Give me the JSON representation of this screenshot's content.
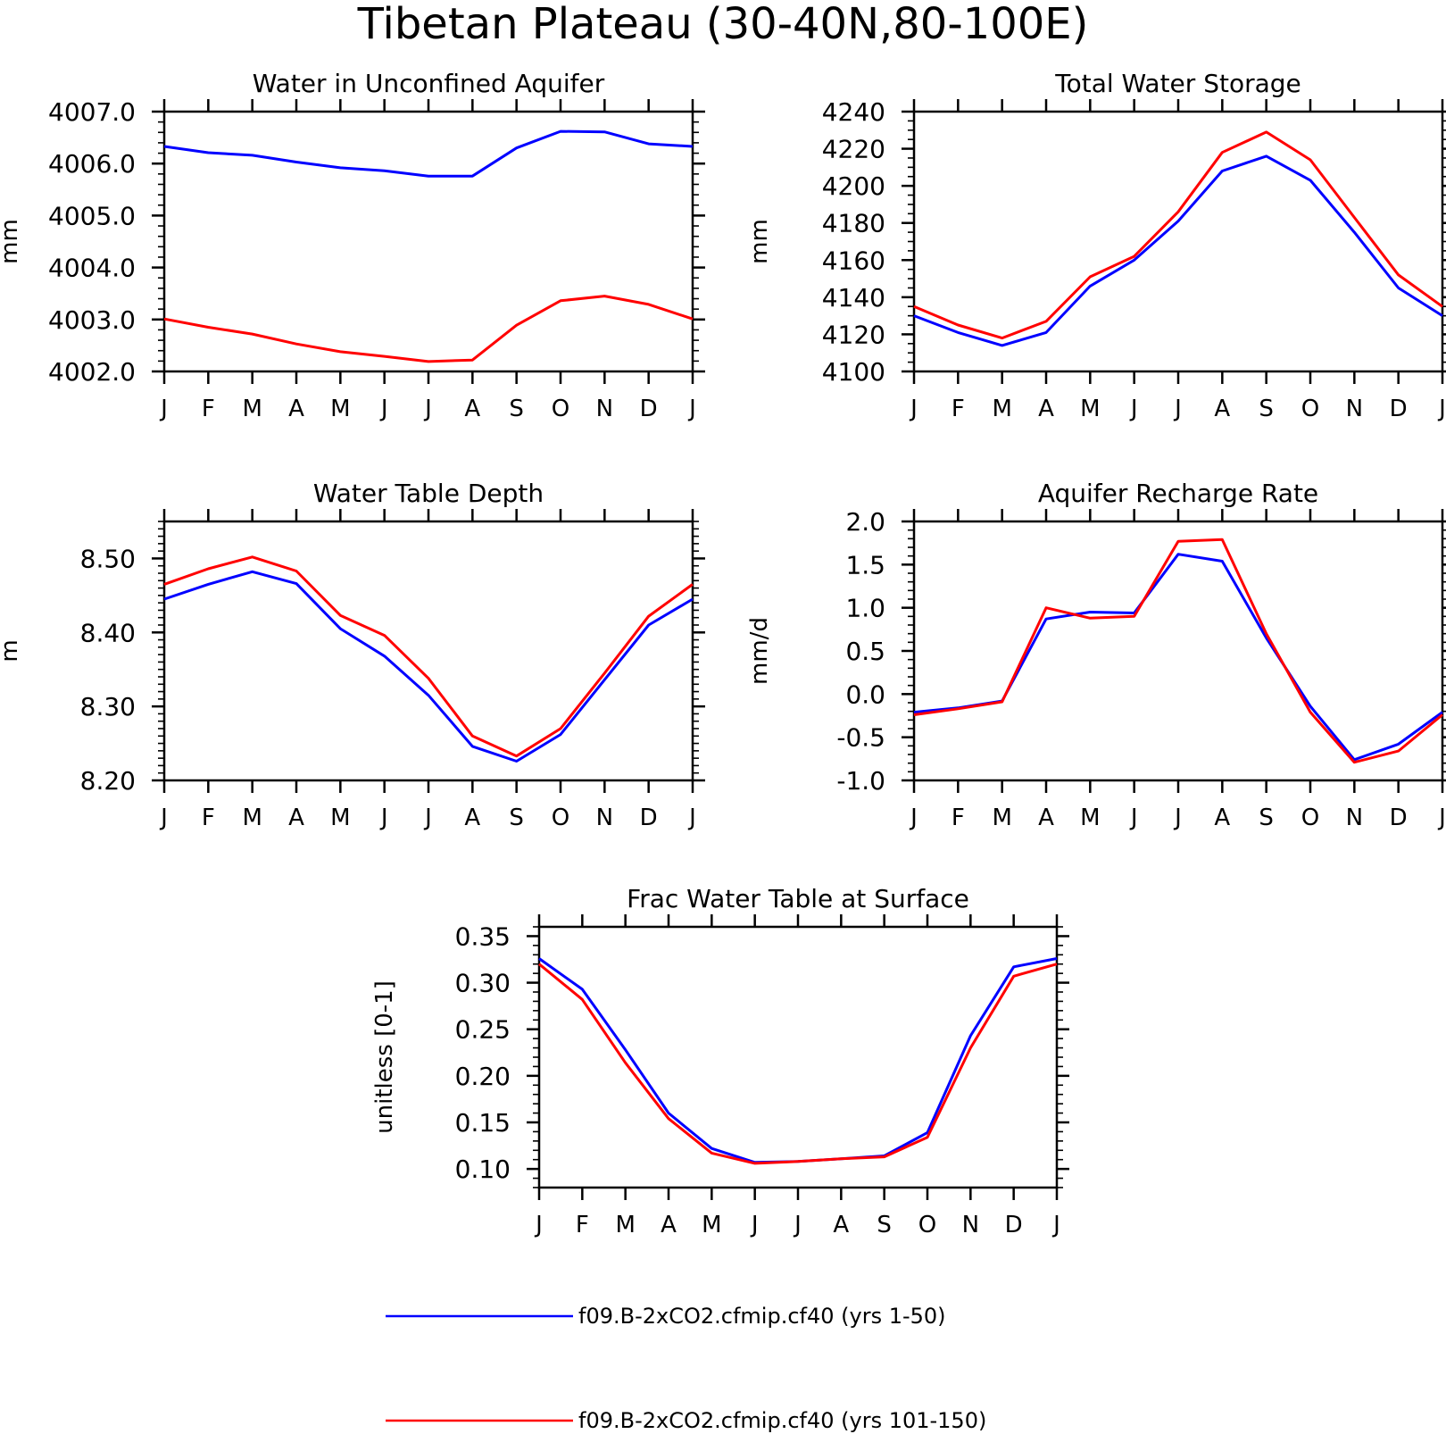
{
  "figure": {
    "title": "Tibetan Plateau (30-40N,80-100E)"
  },
  "colors": {
    "run_a": "#0000ff",
    "run_b": "#ff0000"
  },
  "legend": [
    {
      "label": "f09.B-2xCO2.cfmip.cf40 (yrs 1-50)",
      "color": "#0000ff"
    },
    {
      "label": "f09.B-2xCO2.cfmip.cf40 (yrs 101-150)",
      "color": "#ff0000"
    }
  ],
  "chart_data": [
    {
      "type": "line",
      "title": "Water in Unconfined Aquifer",
      "ylabel": "mm",
      "categories": [
        "J",
        "F",
        "M",
        "A",
        "M",
        "J",
        "J",
        "A",
        "S",
        "O",
        "N",
        "D",
        "J"
      ],
      "ylim": [
        4002.0,
        4007.0
      ],
      "yticks": [
        4002.0,
        4003.0,
        4004.0,
        4005.0,
        4006.0,
        4007.0
      ],
      "ytick_labels": [
        "4002.0",
        "4003.0",
        "4004.0",
        "4005.0",
        "4006.0",
        "4007.0"
      ],
      "series": [
        {
          "color": "#0000ff",
          "values": [
            4006.33,
            4006.21,
            4006.16,
            4006.03,
            4005.92,
            4005.86,
            4005.76,
            4005.76,
            4006.3,
            4006.62,
            4006.61,
            4006.38,
            4006.33
          ]
        },
        {
          "color": "#ff0000",
          "values": [
            4003.01,
            4002.85,
            4002.72,
            4002.53,
            4002.38,
            4002.29,
            4002.19,
            4002.22,
            4002.89,
            4003.36,
            4003.45,
            4003.29,
            4003.01
          ]
        }
      ]
    },
    {
      "type": "line",
      "title": "Total Water Storage",
      "ylabel": "mm",
      "categories": [
        "J",
        "F",
        "M",
        "A",
        "M",
        "J",
        "J",
        "A",
        "S",
        "O",
        "N",
        "D",
        "J"
      ],
      "ylim": [
        4100,
        4240
      ],
      "yticks": [
        4100,
        4120,
        4140,
        4160,
        4180,
        4200,
        4220,
        4240
      ],
      "ytick_labels": [
        "4100",
        "4120",
        "4140",
        "4160",
        "4180",
        "4200",
        "4220",
        "4240"
      ],
      "series": [
        {
          "color": "#0000ff",
          "values": [
            4130,
            4121,
            4114,
            4121,
            4146,
            4160,
            4181,
            4208,
            4216,
            4203,
            4175,
            4145,
            4130
          ]
        },
        {
          "color": "#ff0000",
          "values": [
            4135,
            4125,
            4118,
            4127,
            4151,
            4162,
            4186,
            4218,
            4229,
            4214,
            4183,
            4152,
            4135
          ]
        }
      ]
    },
    {
      "type": "line",
      "title": "Water Table Depth",
      "ylabel": "m",
      "categories": [
        "J",
        "F",
        "M",
        "A",
        "M",
        "J",
        "J",
        "A",
        "S",
        "O",
        "N",
        "D",
        "J"
      ],
      "ylim": [
        8.2,
        8.55
      ],
      "yticks": [
        8.2,
        8.3,
        8.4,
        8.5
      ],
      "ytick_labels": [
        "8.20",
        "8.30",
        "8.40",
        "8.50"
      ],
      "series": [
        {
          "color": "#0000ff",
          "values": [
            8.445,
            8.465,
            8.482,
            8.466,
            8.405,
            8.368,
            8.315,
            8.246,
            8.226,
            8.262,
            8.336,
            8.41,
            8.445
          ]
        },
        {
          "color": "#ff0000",
          "values": [
            8.465,
            8.486,
            8.502,
            8.483,
            8.423,
            8.396,
            8.338,
            8.26,
            8.233,
            8.27,
            8.345,
            8.422,
            8.465
          ]
        }
      ]
    },
    {
      "type": "line",
      "title": "Aquifer Recharge Rate",
      "ylabel": "mm/d",
      "categories": [
        "J",
        "F",
        "M",
        "A",
        "M",
        "J",
        "J",
        "A",
        "S",
        "O",
        "N",
        "D",
        "J"
      ],
      "ylim": [
        -1.0,
        2.0
      ],
      "yticks": [
        -1.0,
        -0.5,
        0.0,
        0.5,
        1.0,
        1.5,
        2.0
      ],
      "ytick_labels": [
        "-1.0",
        "-0.5",
        "0.0",
        "0.5",
        "1.0",
        "1.5",
        "2.0"
      ],
      "series": [
        {
          "color": "#0000ff",
          "values": [
            -0.21,
            -0.16,
            -0.08,
            0.87,
            0.95,
            0.94,
            1.62,
            1.54,
            0.65,
            -0.14,
            -0.76,
            -0.58,
            -0.21
          ]
        },
        {
          "color": "#ff0000",
          "values": [
            -0.24,
            -0.17,
            -0.09,
            1.0,
            0.88,
            0.9,
            1.77,
            1.79,
            0.7,
            -0.21,
            -0.79,
            -0.66,
            -0.24
          ]
        }
      ]
    },
    {
      "type": "line",
      "title": "Frac Water Table at Surface",
      "ylabel": "unitless [0-1]",
      "categories": [
        "J",
        "F",
        "M",
        "A",
        "M",
        "J",
        "J",
        "A",
        "S",
        "O",
        "N",
        "D",
        "J"
      ],
      "ylim": [
        0.08,
        0.36
      ],
      "yticks": [
        0.1,
        0.15,
        0.2,
        0.25,
        0.3,
        0.35
      ],
      "ytick_labels": [
        "0.10",
        "0.15",
        "0.20",
        "0.25",
        "0.30",
        "0.35"
      ],
      "series": [
        {
          "color": "#0000ff",
          "values": [
            0.326,
            0.293,
            0.228,
            0.16,
            0.122,
            0.107,
            0.108,
            0.111,
            0.114,
            0.139,
            0.243,
            0.317,
            0.326
          ]
        },
        {
          "color": "#ff0000",
          "values": [
            0.32,
            0.282,
            0.214,
            0.154,
            0.117,
            0.106,
            0.108,
            0.111,
            0.113,
            0.134,
            0.23,
            0.307,
            0.32
          ]
        }
      ]
    }
  ]
}
